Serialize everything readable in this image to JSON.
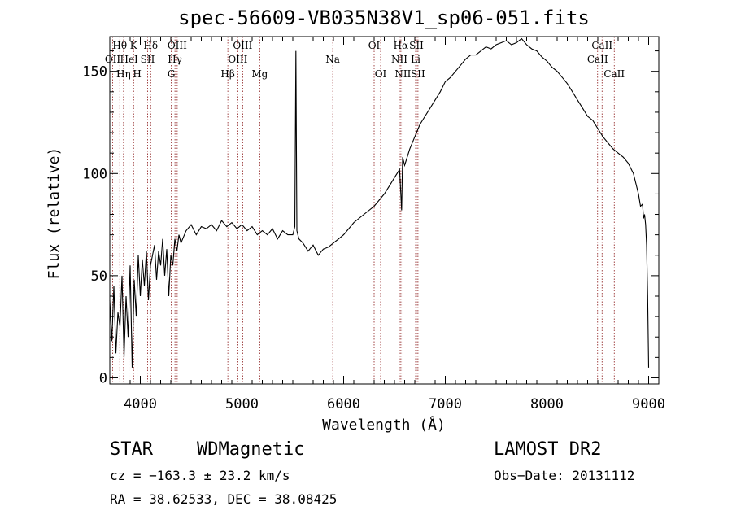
{
  "chart_data": {
    "type": "line",
    "title": "spec-56609-VB035N38V1_sp06-051.fits",
    "xlabel": "Wavelength (Å)",
    "ylabel": "Flux (relative)",
    "xlim": [
      3700,
      9100
    ],
    "ylim": [
      -3,
      167
    ],
    "xticks": [
      4000,
      5000,
      6000,
      7000,
      8000,
      9000
    ],
    "xtick_labels": [
      "4000",
      "5000",
      "6000",
      "7000",
      "8000",
      "9000"
    ],
    "yticks": [
      0,
      50,
      100,
      150
    ],
    "ytick_labels": [
      "0",
      "50",
      "100",
      "150"
    ],
    "grid": false,
    "series": [
      {
        "x": [
          3700,
          3720,
          3740,
          3760,
          3780,
          3800,
          3820,
          3840,
          3860,
          3880,
          3900,
          3920,
          3940,
          3960,
          3980,
          4000,
          4020,
          4040,
          4060,
          4080,
          4100,
          4120,
          4140,
          4160,
          4180,
          4200,
          4220,
          4240,
          4260,
          4280,
          4300,
          4320,
          4340,
          4360,
          4380,
          4400,
          4450,
          4500,
          4550,
          4600,
          4650,
          4700,
          4750,
          4800,
          4850,
          4900,
          4950,
          5000,
          5050,
          5100,
          5150,
          5200,
          5250,
          5300,
          5350,
          5400,
          5450,
          5500,
          5520,
          5530,
          5540,
          5560,
          5600,
          5650,
          5700,
          5750,
          5800,
          5850,
          5900,
          5950,
          6000,
          6050,
          6100,
          6150,
          6200,
          6250,
          6300,
          6350,
          6400,
          6450,
          6500,
          6550,
          6570,
          6580,
          6600,
          6650,
          6700,
          6750,
          6800,
          6850,
          6900,
          6950,
          7000,
          7050,
          7100,
          7150,
          7200,
          7250,
          7300,
          7350,
          7400,
          7450,
          7500,
          7550,
          7600,
          7650,
          7700,
          7750,
          7800,
          7850,
          7900,
          7950,
          8000,
          8050,
          8100,
          8150,
          8200,
          8250,
          8300,
          8350,
          8400,
          8450,
          8500,
          8550,
          8600,
          8650,
          8700,
          8750,
          8800,
          8850,
          8900,
          8920,
          8940,
          8950,
          8960,
          8970,
          8980,
          8990,
          9000
        ],
        "y": [
          38,
          18,
          45,
          12,
          32,
          25,
          50,
          10,
          40,
          20,
          55,
          5,
          48,
          30,
          60,
          40,
          58,
          45,
          62,
          38,
          55,
          60,
          65,
          48,
          62,
          55,
          68,
          50,
          63,
          40,
          60,
          55,
          68,
          62,
          70,
          66,
          72,
          75,
          70,
          74,
          73,
          75,
          72,
          77,
          74,
          76,
          73,
          75,
          72,
          74,
          70,
          72,
          70,
          73,
          68,
          72,
          70,
          70,
          74,
          160,
          72,
          68,
          66,
          62,
          65,
          60,
          63,
          64,
          66,
          68,
          70,
          73,
          76,
          78,
          80,
          82,
          84,
          87,
          90,
          94,
          98,
          102,
          82,
          108,
          104,
          112,
          118,
          124,
          128,
          132,
          136,
          140,
          145,
          147,
          150,
          153,
          156,
          158,
          158,
          160,
          162,
          161,
          163,
          164,
          165,
          163,
          164,
          166,
          163,
          161,
          160,
          157,
          155,
          152,
          150,
          147,
          144,
          140,
          136,
          132,
          128,
          126,
          122,
          118,
          115,
          112,
          110,
          108,
          105,
          100,
          90,
          84,
          85,
          78,
          80,
          75,
          65,
          40,
          5
        ]
      }
    ],
    "line_markers": [
      {
        "name": "Hθ",
        "x": 3798,
        "row": 1
      },
      {
        "name": "OII",
        "x": 3728,
        "row": 2
      },
      {
        "name": "Hη",
        "x": 3835,
        "row": 3
      },
      {
        "name": "K",
        "x": 3934,
        "row": 1
      },
      {
        "name": "HeI",
        "x": 3889,
        "row": 2
      },
      {
        "name": "H",
        "x": 3969,
        "row": 3
      },
      {
        "name": "Hδ",
        "x": 4102,
        "row": 1
      },
      {
        "name": "SII",
        "x": 4072,
        "row": 2
      },
      {
        "name": "OIII",
        "x": 4363,
        "row": 1
      },
      {
        "name": "Hγ",
        "x": 4341,
        "row": 2
      },
      {
        "name": "G",
        "x": 4305,
        "row": 3
      },
      {
        "name": "OIII",
        "x": 5007,
        "row": 1
      },
      {
        "name": "OIII",
        "x": 4959,
        "row": 2
      },
      {
        "name": "Hβ",
        "x": 4861,
        "row": 3
      },
      {
        "name": "Mg",
        "x": 5175,
        "row": 3
      },
      {
        "name": "Na",
        "x": 5893,
        "row": 2
      },
      {
        "name": "OI",
        "x": 6300,
        "row": 1
      },
      {
        "name": "OI",
        "x": 6364,
        "row": 3
      },
      {
        "name": "Hα",
        "x": 6563,
        "row": 1
      },
      {
        "name": "SII",
        "x": 6716,
        "row": 1
      },
      {
        "name": "NII",
        "x": 6548,
        "row": 2
      },
      {
        "name": "Li",
        "x": 6708,
        "row": 2
      },
      {
        "name": "NII",
        "x": 6583,
        "row": 3
      },
      {
        "name": "SII",
        "x": 6731,
        "row": 3
      },
      {
        "name": "CaII",
        "x": 8542,
        "row": 1
      },
      {
        "name": "CaII",
        "x": 8498,
        "row": 2
      },
      {
        "name": "CaII",
        "x": 8662,
        "row": 3
      }
    ]
  },
  "info": {
    "class": "STAR",
    "subclass": "WDMagnetic",
    "survey": "LAMOST DR2",
    "cz": "cz = −163.3 ± 23.2 km/s",
    "obs_date": "Obs−Date: 20131112",
    "coords": "RA =  38.62533, DEC =  38.08425"
  },
  "colors": {
    "spectrum": "#000000",
    "line_markers": "#8b1a1a",
    "axes": "#000000"
  }
}
